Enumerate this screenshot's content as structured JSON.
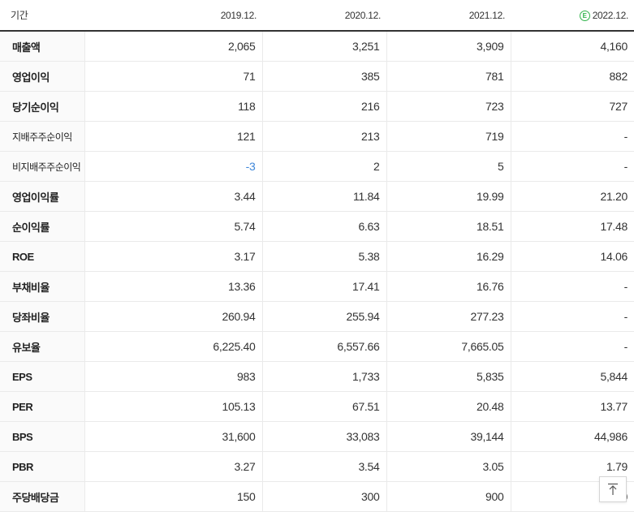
{
  "header": {
    "label": "기간",
    "periods": [
      "2019.12.",
      "2020.12.",
      "2021.12.",
      "2022.12."
    ],
    "estimate_mark": "E"
  },
  "rows": [
    {
      "label": "매출액",
      "values": [
        "2,065",
        "3,251",
        "3,909",
        "4,160"
      ]
    },
    {
      "label": "영업이익",
      "values": [
        "71",
        "385",
        "781",
        "882"
      ]
    },
    {
      "label": "당기순이익",
      "values": [
        "118",
        "216",
        "723",
        "727"
      ]
    },
    {
      "label": "지배주주순이익",
      "values": [
        "121",
        "213",
        "719",
        "-"
      ]
    },
    {
      "label": "비지배주주순이익",
      "values": [
        "-3",
        "2",
        "5",
        "-"
      ]
    },
    {
      "label": "영업이익률",
      "values": [
        "3.44",
        "11.84",
        "19.99",
        "21.20"
      ]
    },
    {
      "label": "순이익률",
      "values": [
        "5.74",
        "6.63",
        "18.51",
        "17.48"
      ]
    },
    {
      "label": "ROE",
      "values": [
        "3.17",
        "5.38",
        "16.29",
        "14.06"
      ]
    },
    {
      "label": "부채비율",
      "values": [
        "13.36",
        "17.41",
        "16.76",
        "-"
      ]
    },
    {
      "label": "당좌비율",
      "values": [
        "260.94",
        "255.94",
        "277.23",
        "-"
      ]
    },
    {
      "label": "유보율",
      "values": [
        "6,225.40",
        "6,557.66",
        "7,665.05",
        "-"
      ]
    },
    {
      "label": "EPS",
      "values": [
        "983",
        "1,733",
        "5,835",
        "5,844"
      ]
    },
    {
      "label": "PER",
      "values": [
        "105.13",
        "67.51",
        "20.48",
        "13.77"
      ]
    },
    {
      "label": "BPS",
      "values": [
        "31,600",
        "33,083",
        "39,144",
        "44,986"
      ]
    },
    {
      "label": "PBR",
      "values": [
        "3.27",
        "3.54",
        "3.05",
        "1.79"
      ]
    },
    {
      "label": "주당배당금",
      "values": [
        "150",
        "300",
        "900",
        "0"
      ]
    }
  ],
  "colors": {
    "negative": "#3f87d9",
    "estimate": "#2fb34a"
  },
  "icons": {
    "scroll_top": "arrow-up-icon"
  }
}
